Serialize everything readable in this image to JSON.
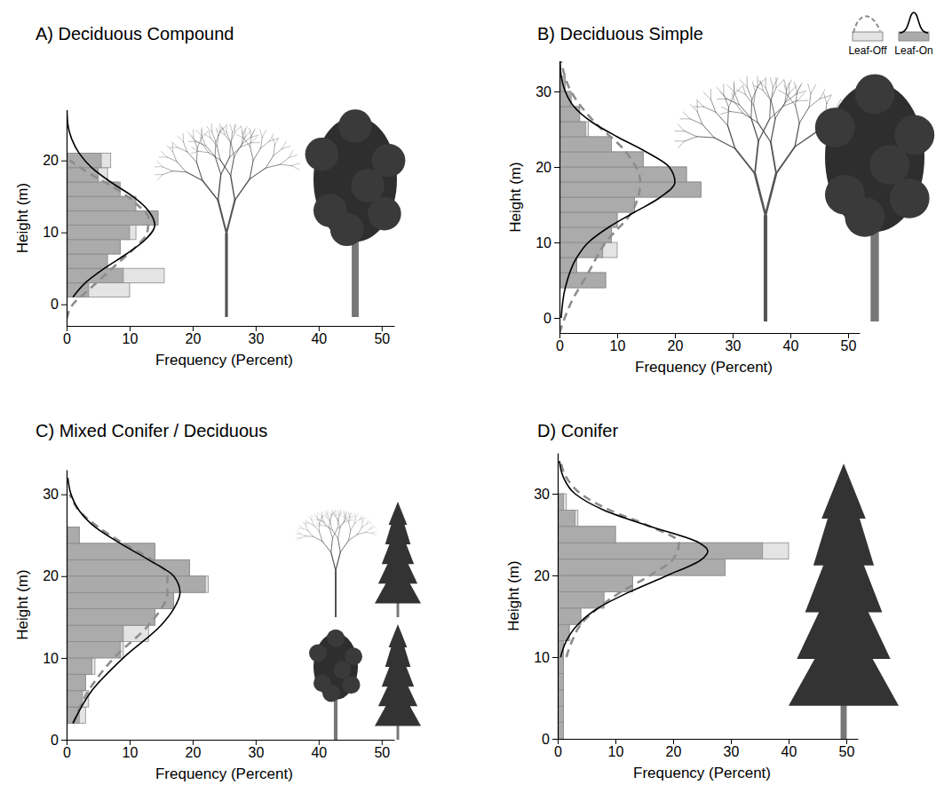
{
  "chart_data": [
    {
      "type": "histogram",
      "title": "A) Deciduous Compound",
      "orientation": "horizontal",
      "xlabel": "Frequency (Percent)",
      "ylabel": "Height (m)",
      "xlim": [
        0,
        52
      ],
      "xticks": [
        0,
        10,
        20,
        30,
        40,
        50
      ],
      "ylim": [
        -3,
        27
      ],
      "yticks": [
        0,
        10,
        20
      ],
      "bins": [
        1,
        3,
        5,
        7,
        9,
        11,
        13,
        15,
        17,
        19,
        21
      ],
      "series": [
        {
          "name": "Leaf-Off",
          "color": "#e4e4e4",
          "line_style": "dashed",
          "values": [
            10,
            15.5,
            6,
            8.5,
            11,
            14.5,
            10,
            8,
            6.5,
            7
          ],
          "curve": {
            "heights": [
              -2,
              0,
              2,
              4,
              6,
              8,
              10,
              12,
              14,
              16,
              18,
              20
            ],
            "values": [
              0,
              1,
              3.5,
              6,
              8.5,
              11,
              12.8,
              13,
              11,
              8,
              4,
              0.5
            ]
          }
        },
        {
          "name": "Leaf-On",
          "color": "#ababab",
          "line_style": "solid",
          "values": [
            3.5,
            9,
            6.5,
            8.5,
            10,
            14.5,
            11,
            8.5,
            5,
            5.5
          ],
          "curve": {
            "heights": [
              1,
              3,
              5,
              7,
              9,
              11,
              13,
              15,
              17,
              19,
              21,
              23,
              25,
              27
            ],
            "values": [
              1,
              3,
              6,
              9.5,
              12.5,
              14,
              13,
              10.5,
              7,
              4,
              2,
              0.8,
              0.2,
              0.05
            ]
          }
        }
      ]
    },
    {
      "type": "histogram",
      "title": "B) Deciduous Simple",
      "orientation": "horizontal",
      "xlabel": "Frequency (Percent)",
      "ylabel": "Height (m)",
      "xlim": [
        0,
        52
      ],
      "xticks": [
        0,
        10,
        20,
        30,
        40,
        50
      ],
      "ylim": [
        -2,
        34
      ],
      "yticks": [
        0,
        10,
        20,
        30
      ],
      "legend": "upper right",
      "bins": [
        4,
        6,
        8,
        10,
        12,
        14,
        16,
        18,
        20,
        22,
        24,
        26,
        28,
        30,
        32
      ],
      "series": [
        {
          "name": "Leaf-Off",
          "color": "#e4e4e4",
          "line_style": "dashed",
          "values": [
            8,
            3,
            10,
            9,
            10,
            13,
            24.5,
            22,
            14.5,
            9,
            5,
            3.5,
            2,
            1
          ],
          "curve": {
            "heights": [
              -2,
              2,
              6,
              10,
              14,
              18,
              22,
              26,
              30,
              34
            ],
            "values": [
              0,
              2,
              5,
              8,
              12.5,
              14,
              11.5,
              6,
              2,
              0.3
            ]
          }
        },
        {
          "name": "Leaf-On",
          "color": "#ababab",
          "line_style": "solid",
          "values": [
            8,
            3,
            7.5,
            9,
            10,
            13,
            24.5,
            22,
            14.5,
            9,
            4.5,
            3.5,
            2,
            1
          ],
          "curve": {
            "heights": [
              0,
              4,
              8,
              10,
              12,
              14,
              16,
              18,
              20,
              22,
              24,
              26,
              28,
              30,
              32,
              34
            ],
            "values": [
              0.3,
              1,
              3,
              5,
              8.5,
              13,
              17.5,
              20,
              19,
              15,
              10,
              5.5,
              2.5,
              1,
              0.3,
              0.1
            ]
          }
        }
      ]
    },
    {
      "type": "histogram",
      "title": "C) Mixed Conifer / Deciduous",
      "orientation": "horizontal",
      "xlabel": "Frequency (Percent)",
      "ylabel": "Height (m)",
      "xlim": [
        0,
        52
      ],
      "xticks": [
        0,
        10,
        20,
        30,
        40,
        50
      ],
      "ylim": [
        0,
        33
      ],
      "yticks": [
        0,
        10,
        20,
        30
      ],
      "bins": [
        2,
        4,
        6,
        8,
        10,
        12,
        14,
        16,
        18,
        20,
        22,
        24,
        26
      ],
      "series": [
        {
          "name": "Leaf-Off",
          "color": "#e4e4e4",
          "line_style": "dashed",
          "values": [
            3,
            3.5,
            3,
            4.5,
            9,
            13,
            14,
            17,
            22.5,
            19.5,
            14,
            2
          ],
          "curve": {
            "heights": [
              2,
              6,
              10,
              14,
              18,
              20,
              22,
              24,
              26,
              28,
              30
            ],
            "values": [
              1,
              3.5,
              7.5,
              13,
              16,
              16,
              13.5,
              9,
              5,
              2,
              0.5
            ]
          }
        },
        {
          "name": "Leaf-On",
          "color": "#ababab",
          "line_style": "solid",
          "values": [
            2,
            2.5,
            3,
            4,
            8.5,
            9,
            14,
            17,
            22,
            19.5,
            14,
            2
          ],
          "curve": {
            "heights": [
              2,
              6,
              10,
              14,
              16,
              18,
              20,
              22,
              24,
              26,
              28,
              30,
              32
            ],
            "values": [
              1,
              4,
              9,
              15,
              17,
              18,
              17,
              13,
              8.5,
              4.5,
              2,
              0.7,
              0.2
            ]
          }
        }
      ]
    },
    {
      "type": "histogram",
      "title": "D) Conifer",
      "orientation": "horizontal",
      "xlabel": "Frequency (Percent)",
      "ylabel": "Height (m)",
      "xlim": [
        0,
        52
      ],
      "xticks": [
        0,
        10,
        20,
        30,
        40,
        50
      ],
      "ylim": [
        0,
        35
      ],
      "yticks": [
        0,
        10,
        20,
        30
      ],
      "bins": [
        0,
        2,
        4,
        6,
        8,
        10,
        12,
        14,
        16,
        18,
        20,
        22,
        24,
        26,
        28,
        30
      ],
      "series": [
        {
          "name": "Leaf-Off",
          "color": "#e4e4e4",
          "line_style": "dashed",
          "values": [
            1,
            1,
            1,
            1,
            1,
            1,
            2,
            4,
            8,
            13,
            29,
            40,
            10,
            3.5,
            1.5
          ],
          "curve": {
            "heights": [
              10,
              12,
              14,
              16,
              18,
              20,
              22,
              24,
              26,
              28,
              30,
              32,
              34
            ],
            "values": [
              1.5,
              2.5,
              4,
              7,
              11,
              16,
              20,
              21,
              16,
              9,
              4,
              1.5,
              0.5
            ]
          }
        },
        {
          "name": "Leaf-On",
          "color": "#ababab",
          "line_style": "solid",
          "values": [
            1,
            1,
            1,
            1,
            1,
            1,
            2,
            4,
            8,
            13,
            29,
            35.5,
            10,
            3,
            1
          ],
          "curve": {
            "heights": [
              10,
              12,
              14,
              16,
              18,
              20,
              22,
              23,
              24,
              26,
              28,
              30,
              32,
              34
            ],
            "values": [
              0.5,
              1.5,
              3.5,
              7,
              12.5,
              19,
              25,
              26,
              24.5,
              16,
              8,
              3,
              1,
              0.3
            ]
          }
        }
      ]
    }
  ]
}
